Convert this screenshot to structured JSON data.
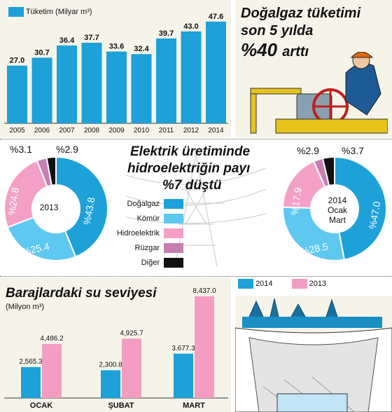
{
  "colors": {
    "gas": "#1da1d8",
    "coal": "#5ec8f0",
    "hydro": "#f4a0c6",
    "wind": "#c77fb2",
    "other": "#111111",
    "y2014": "#1da1d8",
    "y2013": "#f39dc3",
    "panel": "#f6f4e8"
  },
  "icons": {
    "worker": "gas-valve-worker-icon",
    "pylon": "power-pylon-icon",
    "dam": "hydro-dam-icon"
  },
  "gas_section": {
    "title_line1": "Doğalgaz tüketimi",
    "title_line2": "son 5 yılda",
    "title_pct": "%40",
    "title_word": "arttı"
  },
  "hydro_section": {
    "title_line1": "Elektrik üretiminde",
    "title_line2": "hidroelektriğin payı",
    "title_line3": "%7 düştü",
    "center_2013": "2013",
    "center_2014_line1": "2014",
    "center_2014_line2": "Ocak",
    "center_2014_line3": "Mart"
  },
  "dam_section": {
    "title": "Barajlardaki su seviyesi",
    "unit": "(Milyon m³)",
    "legend_2014": "2014",
    "legend_2013": "2013"
  },
  "chart_data": [
    {
      "type": "bar",
      "legend": "Tüketim (Milyar m³)",
      "categories": [
        "2005",
        "2006",
        "2007",
        "2008",
        "2009",
        "2010",
        "2011",
        "2012",
        "2014"
      ],
      "values": [
        27.0,
        30.7,
        36.4,
        37.7,
        33.6,
        32.4,
        39.7,
        43.0,
        47.6
      ],
      "labels": [
        "27.0",
        "30.7",
        "36.4",
        "37.7",
        "33.6",
        "32.4",
        "39.7",
        "43.0",
        "47.6"
      ]
    },
    {
      "type": "pie",
      "year": "2013",
      "categories": [
        "Doğalgaz",
        "Kömür",
        "Hidroelektrik",
        "Rüzgar",
        "Diğer"
      ],
      "values": [
        43.8,
        25.4,
        24.8,
        3.1,
        2.9
      ],
      "labels": [
        "%43.8",
        "%25.4",
        "%24.8",
        "%3.1",
        "%2.9"
      ]
    },
    {
      "type": "pie",
      "year": "2014 Ocak Mart",
      "categories": [
        "Doğalgaz",
        "Kömür",
        "Hidroelektrik",
        "Rüzgar",
        "Diğer"
      ],
      "values": [
        47.0,
        28.5,
        17.9,
        2.9,
        3.7
      ],
      "labels": [
        "%47.0",
        "%28.5",
        "%17.9",
        "%2.9",
        "%3.7"
      ]
    },
    {
      "type": "bar",
      "categories": [
        "OCAK",
        "ŞUBAT",
        "MART"
      ],
      "series": [
        {
          "name": "2014",
          "values": [
            2565.3,
            2300.8,
            3677.3
          ],
          "labels": [
            "2,565.3",
            "2,300.8",
            "3.677.3"
          ]
        },
        {
          "name": "2013",
          "values": [
            4486.2,
            4925.7,
            8437.0
          ],
          "labels": [
            "4,486.2",
            "4,925.7",
            "8,437.0"
          ]
        }
      ]
    }
  ]
}
